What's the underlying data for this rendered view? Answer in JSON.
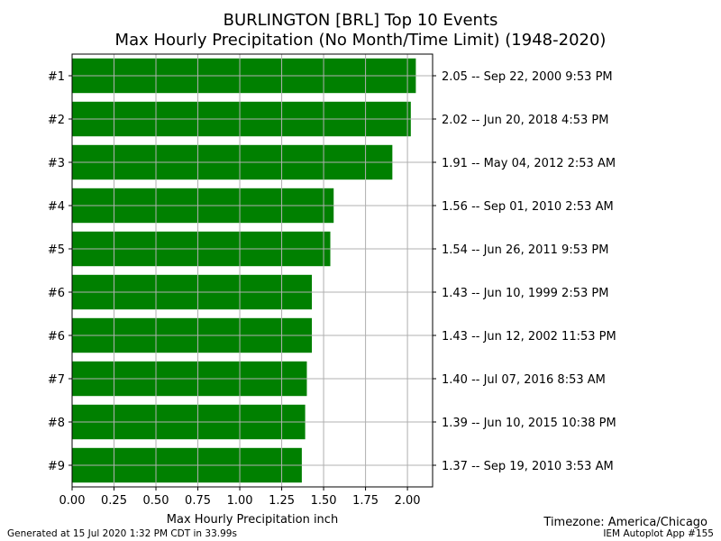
{
  "chart_data": {
    "type": "bar",
    "orientation": "horizontal",
    "title_line1": "BURLINGTON [BRL] Top 10 Events",
    "title_line2": "Max Hourly Precipitation (No Month/Time Limit) (1948-2020)",
    "xlabel": "Max Hourly Precipitation inch",
    "xlim": [
      0,
      2.15
    ],
    "xticks": [
      "0.00",
      "0.25",
      "0.50",
      "0.75",
      "1.00",
      "1.25",
      "1.50",
      "1.75",
      "2.00"
    ],
    "grid": true,
    "bar_color": "#008000",
    "categories": [
      "#1",
      "#2",
      "#3",
      "#4",
      "#5",
      "#6",
      "#6",
      "#7",
      "#8",
      "#9"
    ],
    "values": [
      2.05,
      2.02,
      1.91,
      1.56,
      1.54,
      1.43,
      1.43,
      1.4,
      1.39,
      1.37
    ],
    "event_labels": [
      "2.05 -- Sep 22, 2000 9:53 PM",
      "2.02 -- Jun 20, 2018 4:53 PM",
      "1.91 -- May 04, 2012 2:53 AM",
      "1.56 -- Sep 01, 2010 2:53 AM",
      "1.54 -- Jun 26, 2011 9:53 PM",
      "1.43 -- Jun 10, 1999 2:53 PM",
      "1.43 -- Jun 12, 2002 11:53 PM",
      "1.40 -- Jul 07, 2016 8:53 AM",
      "1.39 -- Jun 10, 2015 10:38 PM",
      "1.37 -- Sep 19, 2010 3:53 AM"
    ]
  },
  "footer": {
    "generated": "Generated at 15 Jul 2020 1:32 PM CDT in 33.99s",
    "timezone": "Timezone: America/Chicago",
    "app": "IEM Autoplot App #155"
  }
}
